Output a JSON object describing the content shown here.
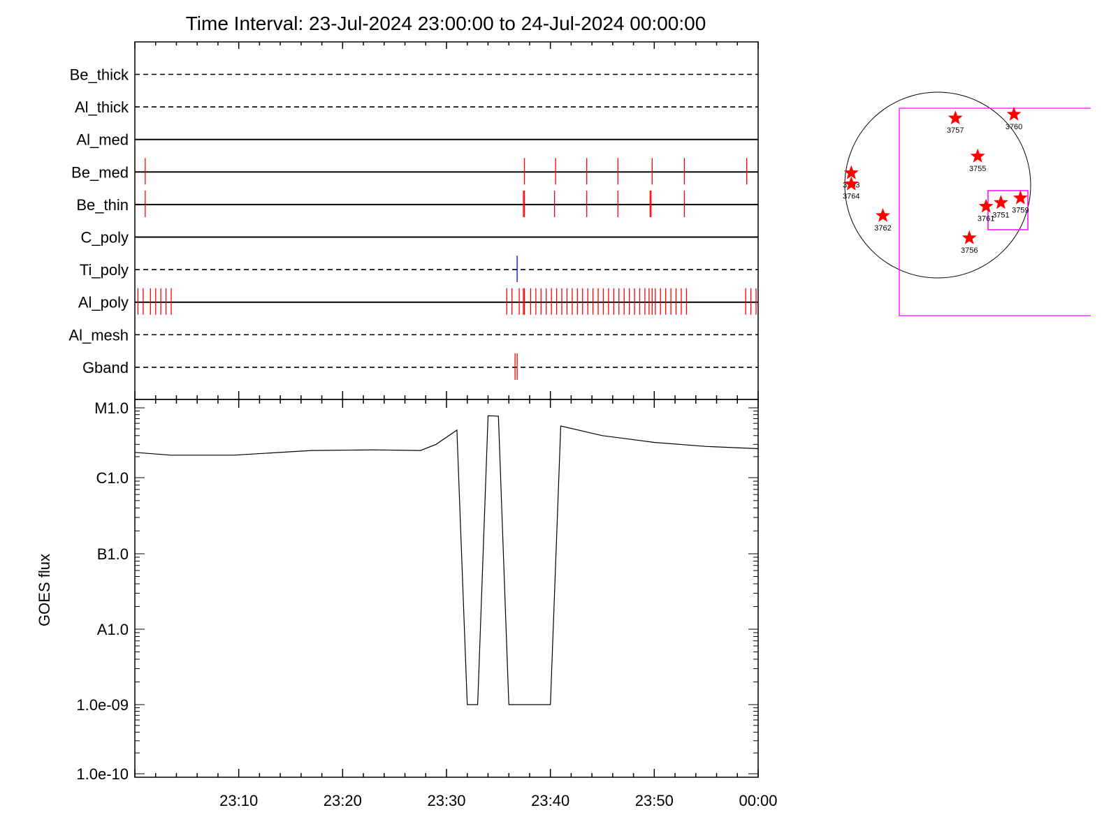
{
  "title": "Time Interval: 23-Jul-2024 23:00:00 to 24-Jul-2024 00:00:00",
  "colors": {
    "axis": "#000000",
    "flare_mark": "#ff0000",
    "ti_mark": "#0000ff",
    "fov_box": "#ff00ff",
    "star": "#ff0000"
  },
  "chart_data": [
    {
      "type": "timeline",
      "panel": "filter-timeline",
      "x_range_minutes": [
        0,
        60
      ],
      "rows": [
        {
          "label": "Be_thick",
          "line_style": "dashed",
          "marks": []
        },
        {
          "label": "Al_thick",
          "line_style": "dashed",
          "marks": []
        },
        {
          "label": "Al_med",
          "line_style": "solid",
          "marks": []
        },
        {
          "label": "Be_med",
          "line_style": "solid",
          "marks": [
            1.0,
            37.5,
            40.5,
            43.5,
            46.5,
            49.8,
            52.9,
            58.9
          ]
        },
        {
          "label": "Be_thin",
          "line_style": "solid",
          "marks": [
            1.0,
            37.4,
            37.5,
            40.4,
            43.5,
            46.5,
            49.6,
            49.7,
            52.9
          ]
        },
        {
          "label": "C_poly",
          "line_style": "solid",
          "marks": []
        },
        {
          "label": "Ti_poly",
          "line_style": "dashed",
          "marks": [
            36.8
          ],
          "mark_color": "ti"
        },
        {
          "label": "Al_poly",
          "line_style": "solid",
          "marks": [
            0.3,
            0.8,
            1.5,
            2.0,
            2.5,
            3.0,
            3.5,
            35.8,
            36.3,
            37.0,
            37.4,
            37.5,
            38.1,
            38.6,
            39.1,
            39.6,
            40.1,
            40.6,
            41.1,
            41.6,
            42.1,
            42.6,
            43.1,
            43.6,
            44.1,
            44.6,
            45.1,
            45.6,
            46.1,
            46.6,
            47.1,
            47.6,
            48.1,
            48.6,
            49.1,
            49.5,
            49.8,
            50.1,
            50.6,
            51.1,
            51.6,
            52.1,
            52.6,
            53.1,
            58.8,
            59.3,
            59.8
          ]
        },
        {
          "label": "Al_mesh",
          "line_style": "dashed",
          "marks": []
        },
        {
          "label": "Gband",
          "line_style": "dashed",
          "marks": [
            36.6,
            36.8
          ]
        }
      ]
    },
    {
      "type": "line",
      "panel": "goes-flux",
      "ylabel": "GOES flux",
      "y_scale": "log",
      "ylim": [
        1e-10,
        1e-05
      ],
      "x_range_minutes": [
        0,
        60
      ],
      "y_ticks": [
        {
          "label": "M1.0",
          "value": 1e-05
        },
        {
          "label": "C1.0",
          "value": 1e-06
        },
        {
          "label": "B1.0",
          "value": 1e-07
        },
        {
          "label": "A1.0",
          "value": 1e-08
        },
        {
          "label": "1.0e-09",
          "value": 1e-09
        },
        {
          "label": "1.0e-10",
          "value": 1e-10
        }
      ],
      "x_ticks": [
        {
          "label": "23:10",
          "minute": 10
        },
        {
          "label": "23:20",
          "minute": 20
        },
        {
          "label": "23:30",
          "minute": 30
        },
        {
          "label": "23:40",
          "minute": 40
        },
        {
          "label": "23:50",
          "minute": 50
        },
        {
          "label": "00:00",
          "minute": 60
        }
      ],
      "series": [
        {
          "x_minutes": [
            0,
            3.5,
            9.5,
            17,
            23,
            27.5,
            29,
            31,
            32,
            33,
            34,
            35,
            36,
            40,
            41,
            45,
            50,
            55,
            60
          ],
          "values": [
            2.3e-06,
            2.1e-06,
            2.1e-06,
            2.45e-06,
            2.5e-06,
            2.45e-06,
            3e-06,
            4.8e-06,
            1e-09,
            1e-09,
            7.7e-06,
            7.6e-06,
            1e-09,
            1e-09,
            5.5e-06,
            4e-06,
            3.2e-06,
            2.8e-06,
            2.6e-06
          ]
        }
      ]
    },
    {
      "type": "scatter",
      "panel": "solar-disk-map",
      "active_regions": [
        {
          "label": "3757",
          "x": 0.19,
          "y": 0.72
        },
        {
          "label": "3760",
          "x": 0.82,
          "y": 0.76
        },
        {
          "label": "3763",
          "x": -0.93,
          "y": 0.13
        },
        {
          "label": "3764",
          "x": -0.93,
          "y": 0.01
        },
        {
          "label": "3755",
          "x": 0.43,
          "y": 0.31
        },
        {
          "label": "3762",
          "x": -0.59,
          "y": -0.33
        },
        {
          "label": "3761",
          "x": 0.52,
          "y": -0.23
        },
        {
          "label": "3751",
          "x": 0.68,
          "y": -0.19
        },
        {
          "label": "3759",
          "x": 0.89,
          "y": -0.14
        },
        {
          "label": "3756",
          "x": 0.34,
          "y": -0.57
        }
      ]
    }
  ]
}
